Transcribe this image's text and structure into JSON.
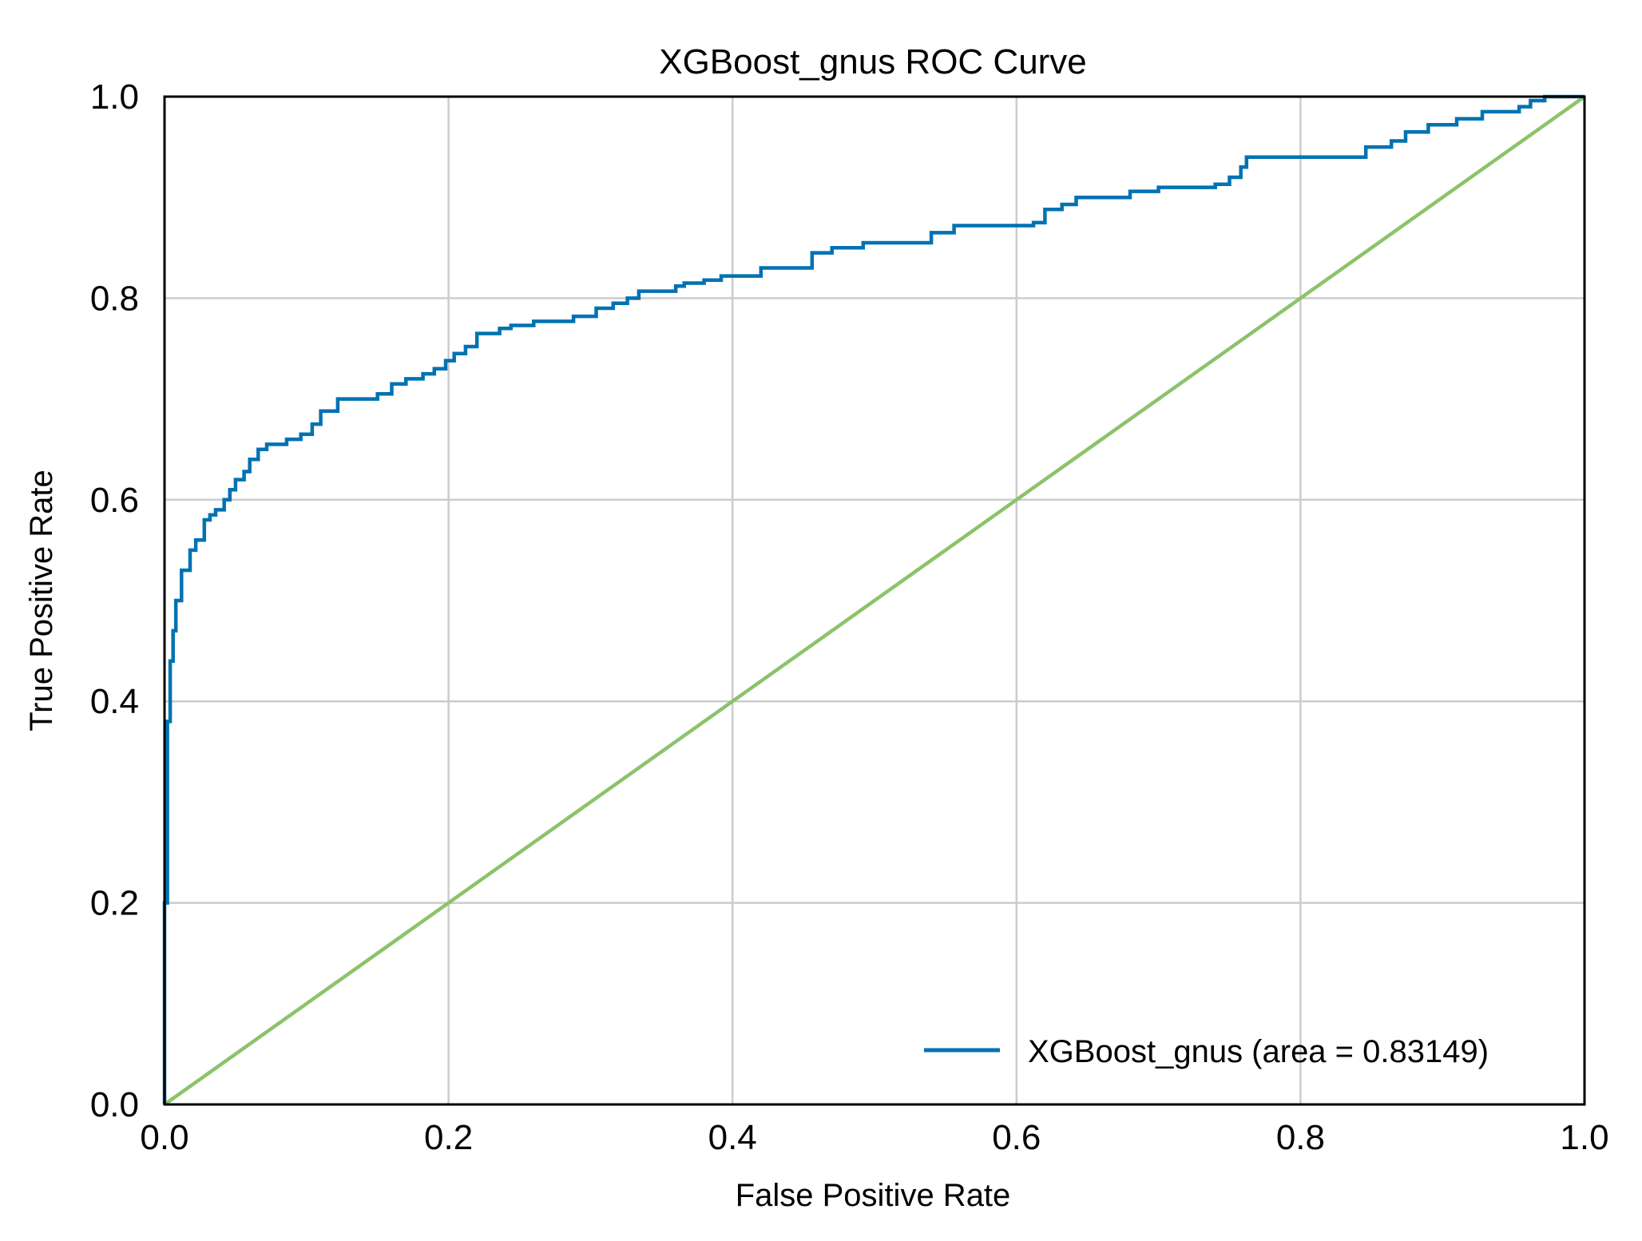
{
  "chart_data": {
    "type": "line",
    "title": "XGBoost_gnus ROC Curve",
    "xlabel": "False Positive Rate",
    "ylabel": "True Positive Rate",
    "xlim": [
      0.0,
      1.0
    ],
    "ylim": [
      0.0,
      1.0
    ],
    "x_ticks": [
      "0.0",
      "0.2",
      "0.4",
      "0.6",
      "0.8",
      "1.0"
    ],
    "y_ticks": [
      "0.0",
      "0.2",
      "0.4",
      "0.6",
      "0.8",
      "1.0"
    ],
    "grid": true,
    "legend": {
      "position": "lower-right",
      "entries": [
        "XGBoost_gnus (area = 0.83149)"
      ]
    },
    "series": [
      {
        "name": "XGBoost_gnus (area = 0.83149)",
        "color": "#0072b2",
        "x": [
          0.0,
          0.0,
          0.002,
          0.002,
          0.004,
          0.004,
          0.006,
          0.006,
          0.008,
          0.008,
          0.012,
          0.012,
          0.018,
          0.018,
          0.022,
          0.022,
          0.028,
          0.028,
          0.032,
          0.032,
          0.036,
          0.036,
          0.042,
          0.042,
          0.046,
          0.046,
          0.05,
          0.05,
          0.056,
          0.056,
          0.06,
          0.06,
          0.066,
          0.066,
          0.072,
          0.072,
          0.086,
          0.086,
          0.096,
          0.096,
          0.104,
          0.104,
          0.11,
          0.11,
          0.122,
          0.122,
          0.15,
          0.15,
          0.16,
          0.16,
          0.17,
          0.17,
          0.182,
          0.182,
          0.19,
          0.19,
          0.198,
          0.198,
          0.204,
          0.204,
          0.212,
          0.212,
          0.22,
          0.22,
          0.236,
          0.236,
          0.244,
          0.244,
          0.26,
          0.26,
          0.288,
          0.288,
          0.304,
          0.304,
          0.316,
          0.316,
          0.326,
          0.326,
          0.334,
          0.334,
          0.36,
          0.36,
          0.366,
          0.366,
          0.38,
          0.38,
          0.392,
          0.392,
          0.42,
          0.42,
          0.456,
          0.456,
          0.47,
          0.47,
          0.492,
          0.492,
          0.54,
          0.54,
          0.556,
          0.556,
          0.612,
          0.612,
          0.62,
          0.62,
          0.632,
          0.632,
          0.642,
          0.642,
          0.68,
          0.68,
          0.7,
          0.7,
          0.74,
          0.74,
          0.75,
          0.75,
          0.758,
          0.758,
          0.762,
          0.762,
          0.846,
          0.846,
          0.864,
          0.864,
          0.874,
          0.874,
          0.89,
          0.89,
          0.91,
          0.91,
          0.928,
          0.928,
          0.954,
          0.954,
          0.962,
          0.962,
          0.972,
          0.972,
          1.0
        ],
        "y": [
          0.0,
          0.2,
          0.2,
          0.38,
          0.38,
          0.44,
          0.44,
          0.47,
          0.47,
          0.5,
          0.5,
          0.53,
          0.53,
          0.55,
          0.55,
          0.56,
          0.56,
          0.58,
          0.58,
          0.585,
          0.585,
          0.59,
          0.59,
          0.6,
          0.6,
          0.61,
          0.61,
          0.62,
          0.62,
          0.628,
          0.628,
          0.64,
          0.64,
          0.65,
          0.65,
          0.655,
          0.655,
          0.66,
          0.66,
          0.665,
          0.665,
          0.675,
          0.675,
          0.688,
          0.688,
          0.7,
          0.7,
          0.705,
          0.705,
          0.715,
          0.715,
          0.72,
          0.72,
          0.725,
          0.725,
          0.73,
          0.73,
          0.738,
          0.738,
          0.745,
          0.745,
          0.752,
          0.752,
          0.765,
          0.765,
          0.77,
          0.77,
          0.773,
          0.773,
          0.777,
          0.777,
          0.782,
          0.782,
          0.79,
          0.79,
          0.795,
          0.795,
          0.8,
          0.8,
          0.807,
          0.807,
          0.812,
          0.812,
          0.815,
          0.815,
          0.818,
          0.818,
          0.822,
          0.822,
          0.83,
          0.83,
          0.845,
          0.845,
          0.85,
          0.85,
          0.855,
          0.855,
          0.865,
          0.865,
          0.872,
          0.872,
          0.875,
          0.875,
          0.888,
          0.888,
          0.893,
          0.893,
          0.9,
          0.9,
          0.906,
          0.906,
          0.91,
          0.91,
          0.913,
          0.913,
          0.92,
          0.92,
          0.93,
          0.93,
          0.94,
          0.94,
          0.95,
          0.95,
          0.956,
          0.956,
          0.965,
          0.965,
          0.972,
          0.972,
          0.978,
          0.978,
          0.985,
          0.985,
          0.99,
          0.99,
          0.996,
          0.996,
          1.0,
          1.0
        ]
      },
      {
        "color": "#8bc36a",
        "x": [
          0.0,
          1.0
        ],
        "y": [
          0.0,
          1.0
        ]
      }
    ]
  }
}
